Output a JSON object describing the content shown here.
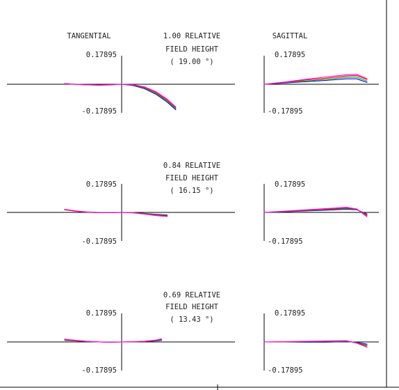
{
  "headers": {
    "tangential": "TANGENTIAL",
    "sagittal": "SAGITTAL"
  },
  "chart_data": {
    "type": "line",
    "title": "",
    "grid": false,
    "y_range": [
      -0.17895,
      0.17895
    ],
    "x_range": [
      -1,
      1
    ],
    "series_colors": [
      "#0000ff",
      "#00bb00",
      "#ff0000",
      "#ff00ff",
      "#000000",
      "#cccc00"
    ],
    "fields": [
      {
        "relative": "1.00 RELATIVE",
        "field_label": "FIELD HEIGHT",
        "angle": "( 19.00 °)",
        "tangential": {
          "y_max_label": "0.17895",
          "y_min_label": "-0.17895",
          "x": [
            -1.0,
            -0.8,
            -0.6,
            -0.4,
            -0.2,
            0.0,
            0.2,
            0.4,
            0.6,
            0.8,
            0.95
          ],
          "series": [
            {
              "values": [
                0.004,
                0.0,
                -0.003,
                -0.004,
                -0.003,
                0.0,
                -0.008,
                -0.028,
                -0.062,
                -0.112,
                -0.16
              ]
            },
            {
              "values": [
                0.005,
                0.0,
                -0.003,
                -0.005,
                -0.004,
                0.0,
                -0.006,
                -0.024,
                -0.057,
                -0.106,
                -0.154
              ]
            },
            {
              "values": [
                0.003,
                -0.001,
                -0.004,
                -0.005,
                -0.003,
                0.0,
                -0.004,
                -0.02,
                -0.052,
                -0.1,
                -0.148
              ]
            },
            {
              "values": [
                0.004,
                -0.001,
                -0.004,
                -0.006,
                -0.004,
                0.0,
                -0.002,
                -0.016,
                -0.046,
                -0.094,
                -0.142
              ]
            }
          ]
        },
        "sagittal": {
          "y_max_label": "0.17895",
          "y_min_label": "-0.17895",
          "x": [
            0.0,
            0.2,
            0.4,
            0.6,
            0.8,
            0.9,
            1.0
          ],
          "series": [
            {
              "values": [
                0.0,
                0.008,
                0.016,
                0.024,
                0.034,
                0.034,
                0.012
              ]
            },
            {
              "values": [
                0.0,
                0.01,
                0.02,
                0.03,
                0.043,
                0.045,
                0.02
              ]
            },
            {
              "values": [
                0.0,
                0.012,
                0.026,
                0.038,
                0.052,
                0.055,
                0.03
              ]
            },
            {
              "values": [
                0.0,
                0.014,
                0.031,
                0.046,
                0.06,
                0.062,
                0.035
              ]
            }
          ]
        }
      },
      {
        "relative": "0.84 RELATIVE",
        "field_label": "FIELD HEIGHT",
        "angle": "( 16.15 °)",
        "tangential": {
          "y_max_label": "0.17895",
          "y_min_label": "-0.17895",
          "x": [
            -1.0,
            -0.8,
            -0.6,
            -0.4,
            -0.2,
            0.0,
            0.2,
            0.4,
            0.6,
            0.8
          ],
          "series": [
            {
              "values": [
                0.018,
                0.008,
                0.002,
                -0.001,
                -0.002,
                0.0,
                -0.002,
                -0.006,
                -0.012,
                -0.016
              ]
            },
            {
              "values": [
                0.016,
                0.008,
                0.003,
                0.0,
                -0.001,
                0.0,
                -0.001,
                -0.007,
                -0.014,
                -0.019
              ]
            },
            {
              "values": [
                0.017,
                0.007,
                0.001,
                -0.002,
                -0.002,
                0.0,
                -0.002,
                -0.009,
                -0.017,
                -0.022
              ]
            },
            {
              "values": [
                0.019,
                0.009,
                0.002,
                -0.001,
                -0.002,
                0.0,
                -0.003,
                -0.011,
                -0.02,
                -0.026
              ]
            }
          ]
        },
        "sagittal": {
          "y_max_label": "0.17895",
          "y_min_label": "-0.17895",
          "x": [
            0.0,
            0.2,
            0.4,
            0.6,
            0.8,
            0.9,
            1.0
          ],
          "series": [
            {
              "values": [
                0.0,
                0.004,
                0.009,
                0.014,
                0.02,
                0.016,
                -0.01
              ]
            },
            {
              "values": [
                0.0,
                0.005,
                0.011,
                0.017,
                0.024,
                0.018,
                -0.015
              ]
            },
            {
              "values": [
                0.0,
                0.006,
                0.013,
                0.02,
                0.028,
                0.02,
                -0.02
              ]
            },
            {
              "values": [
                0.0,
                0.008,
                0.016,
                0.024,
                0.032,
                0.022,
                -0.028
              ]
            }
          ]
        }
      },
      {
        "relative": "0.69 RELATIVE",
        "field_label": "FIELD HEIGHT",
        "angle": "( 13.43 °)",
        "tangential": {
          "y_max_label": "0.17895",
          "y_min_label": "-0.17895",
          "x": [
            -1.0,
            -0.8,
            -0.6,
            -0.4,
            -0.2,
            0.0,
            0.2,
            0.4,
            0.6,
            0.7
          ],
          "series": [
            {
              "values": [
                0.01,
                0.006,
                0.002,
                0.0,
                -0.001,
                0.0,
                0.001,
                0.002,
                0.006,
                0.01
              ]
            },
            {
              "values": [
                0.012,
                0.007,
                0.003,
                0.0,
                -0.001,
                0.0,
                0.001,
                0.003,
                0.008,
                0.013
              ]
            },
            {
              "values": [
                0.014,
                0.008,
                0.003,
                0.0,
                -0.002,
                0.0,
                0.001,
                0.004,
                0.01,
                0.016
              ]
            },
            {
              "values": [
                0.017,
                0.01,
                0.004,
                0.001,
                -0.002,
                0.0,
                0.002,
                0.005,
                0.012,
                0.019
              ]
            }
          ]
        },
        "sagittal": {
          "y_max_label": "0.17895",
          "y_min_label": "-0.17895",
          "x": [
            0.0,
            0.2,
            0.4,
            0.6,
            0.8,
            0.9,
            1.0
          ],
          "series": [
            {
              "values": [
                0.0,
                0.0,
                -0.002,
                -0.002,
                0.002,
                -0.002,
                -0.014
              ]
            },
            {
              "values": [
                0.0,
                0.001,
                0.0,
                0.001,
                0.004,
                -0.004,
                -0.02
              ]
            },
            {
              "values": [
                0.0,
                0.001,
                0.002,
                0.004,
                0.006,
                -0.006,
                -0.026
              ]
            },
            {
              "values": [
                0.0,
                0.002,
                0.004,
                0.006,
                0.008,
                -0.008,
                -0.033
              ]
            }
          ]
        }
      }
    ]
  }
}
